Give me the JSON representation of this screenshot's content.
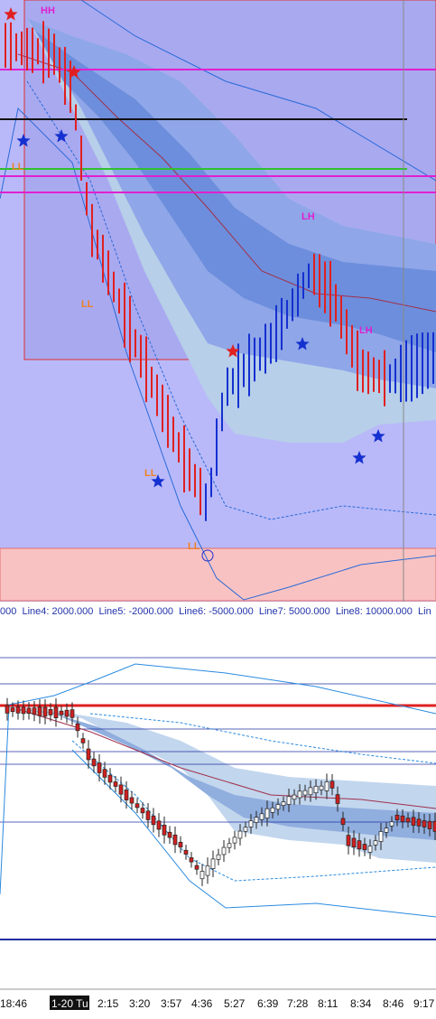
{
  "swing_labels": [
    {
      "text": "HH",
      "kind": "high"
    },
    {
      "text": "LL",
      "kind": "low"
    },
    {
      "text": "LL",
      "kind": "low"
    },
    {
      "text": "LH",
      "kind": "high"
    },
    {
      "text": "LH",
      "kind": "high"
    },
    {
      "text": "LL",
      "kind": "low"
    },
    {
      "text": "LL",
      "kind": "low"
    }
  ],
  "legend_text": "000  Line4: 2000.000  Line5: -2000.000  Line6: -5000.000  Line7: 5000.000  Line8: 10000.000  Lin",
  "time_axis": [
    "18:46",
    "1-20 Tu",
    "2:15",
    "3:20",
    "3:57",
    "4:36",
    "5:27",
    "6:39",
    "7:28",
    "8:11",
    "8:34",
    "8:46",
    "9:17"
  ]
}
